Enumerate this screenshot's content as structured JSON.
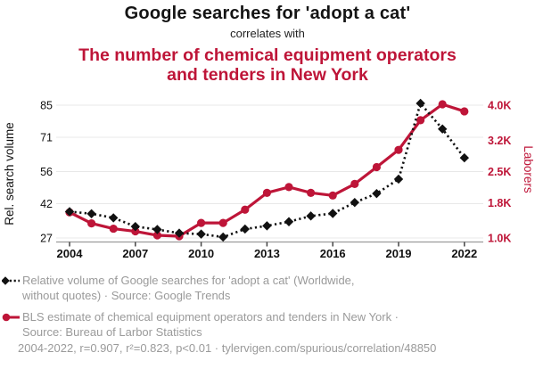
{
  "colors": {
    "accent_red": "#be1538",
    "series_black": "#111111",
    "legend_gray": "#9a9a9a",
    "gridline": "#e8e8e8",
    "axis_line": "#9a9a9a",
    "tick_mark": "#444444"
  },
  "chart_data": {
    "type": "line",
    "title": "Google searches for 'adopt a cat'",
    "subtitle": "correlates with",
    "title2_lines": [
      "The number of chemical equipment operators",
      "and tenders in New York"
    ],
    "x": [
      2004,
      2005,
      2006,
      2007,
      2008,
      2009,
      2010,
      2011,
      2012,
      2013,
      2014,
      2015,
      2016,
      2017,
      2018,
      2019,
      2020,
      2021,
      2022
    ],
    "x_tick_labels": [
      "2004",
      "2007",
      "2010",
      "2013",
      "2016",
      "2019",
      "2022"
    ],
    "grid": "horizontal",
    "legend_position": "bottom",
    "left_axis": {
      "label": "Rel. search volume",
      "ticks": [
        27,
        42,
        56,
        71,
        85
      ],
      "range": [
        27,
        85
      ]
    },
    "right_axis": {
      "label": "Laborers",
      "ticks": [
        1000,
        1800,
        2500,
        3200,
        4000
      ],
      "tick_labels": [
        "1.0K",
        "1.8K",
        "2.5K",
        "3.2K",
        "4.0K"
      ],
      "range": [
        1000,
        4000
      ]
    },
    "series": [
      {
        "name": "Relative volume of Google searches for 'adopt a cat'",
        "axis": "left",
        "color": "#111111",
        "marker": "diamond",
        "line_style": "dotted",
        "values": [
          38.5,
          37.6,
          35.8,
          32.0,
          30.7,
          29.1,
          28.7,
          27.4,
          30.9,
          32.3,
          34.1,
          36.6,
          37.7,
          42.5,
          46.4,
          52.7,
          85.8,
          74.6,
          62.0
        ]
      },
      {
        "name": "BLS estimate of chemical equipment operators and tenders in New York",
        "axis": "right",
        "color": "#be1538",
        "marker": "circle",
        "line_style": "solid",
        "values": [
          1580,
          1330,
          1210,
          1150,
          1060,
          1040,
          1340,
          1340,
          1640,
          2020,
          2150,
          2020,
          1960,
          2220,
          2600,
          2990,
          3660,
          4020,
          3860
        ]
      }
    ],
    "legend": {
      "entries": [
        {
          "line1": "Relative volume of Google searches for 'adopt a cat' (Worldwide,",
          "line2": "without quotes) · Source: Google Trends"
        },
        {
          "line1": "BLS estimate of chemical equipment operators and tenders in New York ·",
          "line2": "Source: Bureau of Larbor Statistics"
        }
      ]
    },
    "footnote": "2004-2022, r=0.907, r²=0.823, p<0.01 · tylervigen.com/spurious/correlation/48850"
  }
}
